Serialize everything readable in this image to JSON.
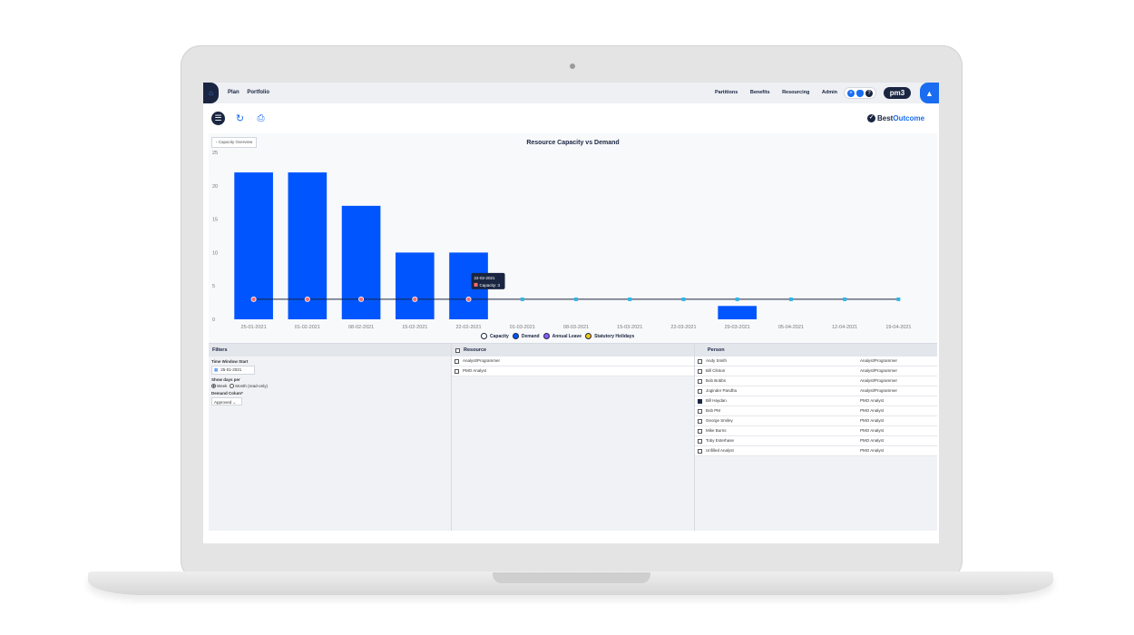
{
  "topnav": {
    "left_items": [
      "Plan",
      "Portfolio"
    ],
    "right_items": [
      "Partitions",
      "Benefits",
      "Resourcing",
      "Admin"
    ],
    "logo": "pm3",
    "icons": [
      "home-icon",
      "plus-icon",
      "user-icon",
      "help-icon",
      "bell-icon"
    ]
  },
  "toolbar": {
    "icons": [
      "menu-icon",
      "refresh-icon",
      "print-icon"
    ],
    "brand_prefix": "Best",
    "brand_suffix": "Outcome"
  },
  "chart_panel": {
    "back_label": "Capacity Overview",
    "tooltip": {
      "date": "22-02-2021",
      "label": "Capacity: 3"
    }
  },
  "chart_data": {
    "type": "bar",
    "title": "Resource Capacity vs Demand",
    "categories": [
      "25-01-2021",
      "01-02-2021",
      "08-02-2021",
      "15-02-2021",
      "22-02-2021",
      "01-03-2021",
      "08-03-2021",
      "15-03-2021",
      "22-03-2021",
      "29-03-2021",
      "05-04-2021",
      "12-04-2021",
      "19-04-2021"
    ],
    "series": [
      {
        "name": "Demand",
        "type": "bar",
        "color": "#0055ff",
        "values": [
          22,
          22,
          17,
          10,
          10,
          0,
          0,
          0,
          0,
          2,
          0,
          0,
          0
        ]
      },
      {
        "name": "Capacity",
        "type": "line",
        "color": "#1a2541",
        "values": [
          3,
          3,
          3,
          3,
          3,
          3,
          3,
          3,
          3,
          3,
          3,
          3,
          3
        ]
      }
    ],
    "legend": [
      {
        "name": "Capacity",
        "color": "#ffffff"
      },
      {
        "name": "Demand",
        "color": "#0055ff"
      },
      {
        "name": "Annual Leave",
        "color": "#8b5cf6"
      },
      {
        "name": "Statutory Holidays",
        "color": "#f5c518"
      }
    ],
    "yticks": [
      "0",
      "5",
      "10",
      "15",
      "20",
      "25"
    ],
    "ylim": [
      0,
      25
    ],
    "legend_position": "bottom",
    "grid": false
  },
  "filters": {
    "title": "Filters",
    "time_window_label": "Time Window Start",
    "time_window_value": "25-01-2021",
    "show_days_label": "Show days per",
    "radio_week": "Week",
    "radio_month": "Month (read-only)",
    "demand_label": "Demand Colum*",
    "demand_value": "Approved"
  },
  "resource": {
    "title": "Resource",
    "items": [
      "Analyst/Programmer",
      "PMO Analyst"
    ]
  },
  "person": {
    "title": "Person",
    "rows": [
      {
        "name": "Andy Smith",
        "role": "Analyst/Programmer",
        "checked": false
      },
      {
        "name": "Bill Clinton",
        "role": "Analyst/Programmer",
        "checked": false
      },
      {
        "name": "Bob Bobbs",
        "role": "Analyst/Programmer",
        "checked": false
      },
      {
        "name": "Joginder Pandha",
        "role": "Analyst/Programmer",
        "checked": false
      },
      {
        "name": "Bill Haydan",
        "role": "PMO Analyst",
        "checked": true
      },
      {
        "name": "Bob PM",
        "role": "PMO Analyst",
        "checked": false
      },
      {
        "name": "George Smiley",
        "role": "PMO Analyst",
        "checked": false
      },
      {
        "name": "Mike Burns",
        "role": "PMO Analyst",
        "checked": false
      },
      {
        "name": "Toby Esterhase",
        "role": "PMO Analyst",
        "checked": false
      },
      {
        "name": "Unfilled Analyst",
        "role": "PMO Analyst",
        "checked": false
      }
    ]
  }
}
